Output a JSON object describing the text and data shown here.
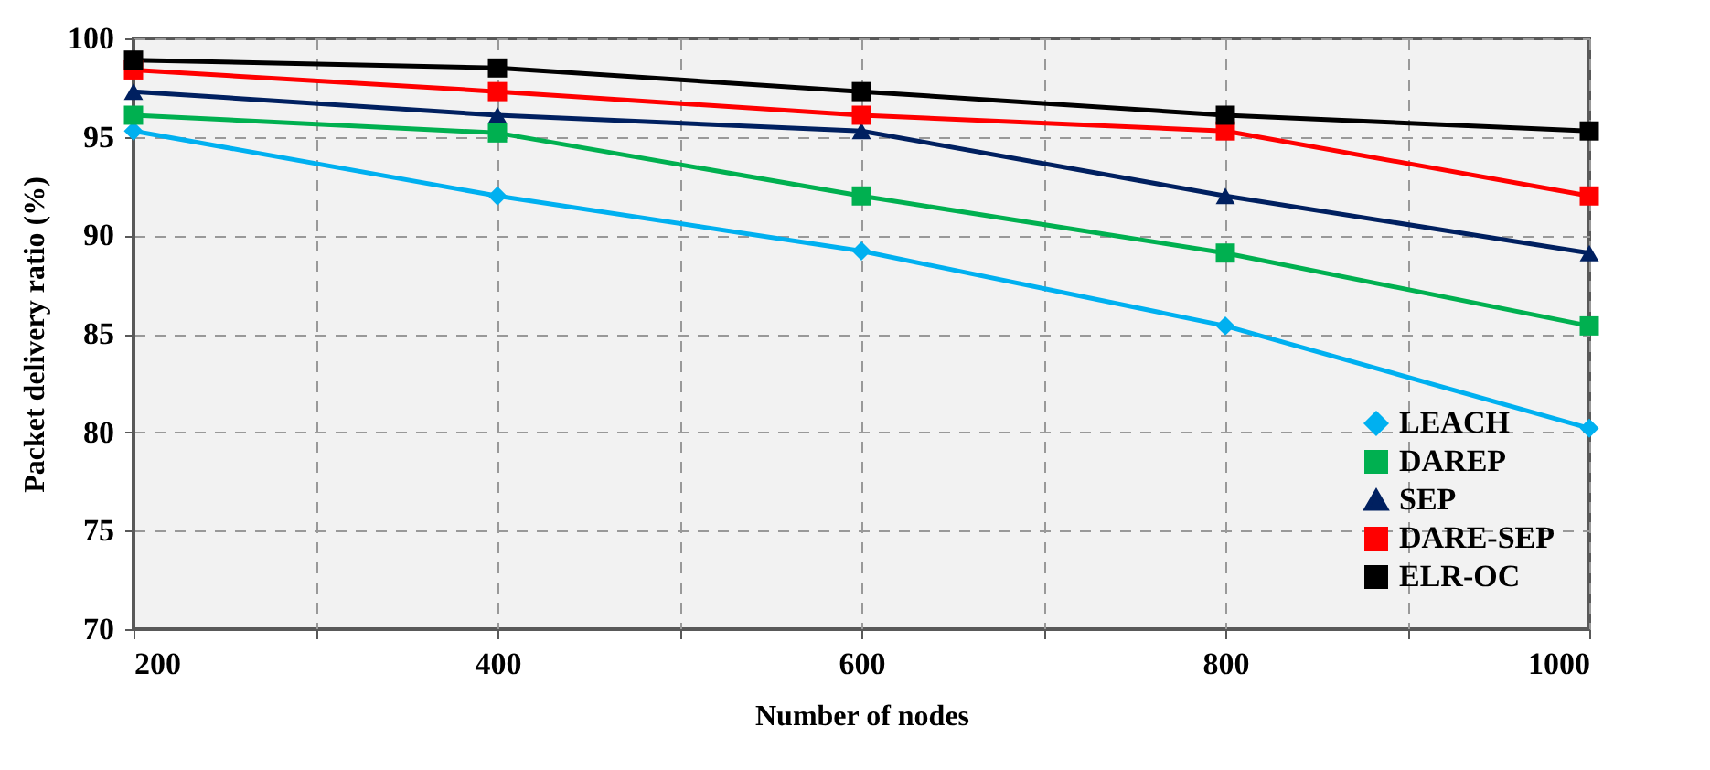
{
  "chart_data": {
    "type": "line",
    "xlabel": "Number of nodes",
    "ylabel": "Packet delivery ratio (%)",
    "x": [
      200,
      400,
      600,
      800,
      1000
    ],
    "xlim": [
      200,
      1000
    ],
    "xticks": [
      200,
      {
        "value": 300,
        "label": null
      },
      400,
      {
        "value": 500,
        "label": null
      },
      600,
      {
        "value": 700,
        "label": null
      },
      800,
      {
        "value": 900,
        "label": null
      },
      1000
    ],
    "ylim": [
      70,
      100
    ],
    "yticks": [
      70,
      75,
      80,
      85,
      90,
      95,
      100
    ],
    "grid": true,
    "legend": "bottom right",
    "line_style": "solid",
    "series": [
      {
        "name": "LEACH",
        "color": "#00b0f0",
        "marker": "diamond",
        "values": [
          95.3,
          92,
          89.2,
          85.4,
          80.2
        ]
      },
      {
        "name": "DAREP",
        "color": "#00b050",
        "marker": "square",
        "values": [
          96.1,
          95.2,
          92,
          89.1,
          85.4
        ]
      },
      {
        "name": "SEP",
        "color": "#002060",
        "marker": "triangle",
        "values": [
          97.3,
          96.1,
          95.3,
          92,
          89.1
        ]
      },
      {
        "name": "DARE-SEP",
        "color": "#ff0000",
        "marker": "square",
        "values": [
          98.4,
          97.3,
          96.1,
          95.3,
          92
        ]
      },
      {
        "name": "ELR-OC",
        "color": "#000000",
        "marker": "square",
        "values": [
          98.9,
          98.5,
          97.3,
          96.1,
          95.3
        ]
      }
    ]
  }
}
